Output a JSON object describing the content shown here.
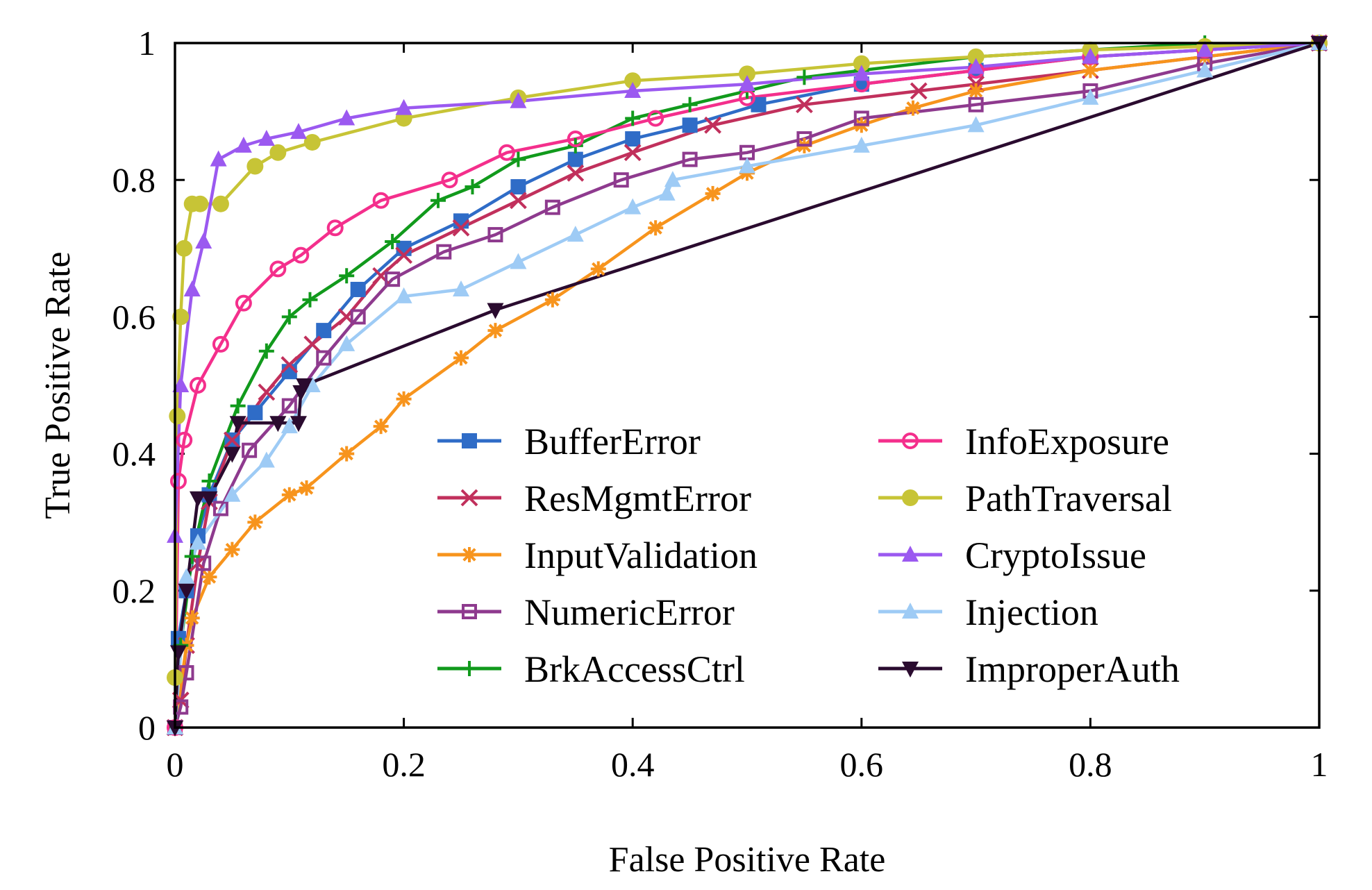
{
  "chart_data": {
    "type": "line",
    "title": "",
    "xlabel": "False Positive Rate",
    "ylabel": "True Positive Rate",
    "xlim": [
      0,
      1
    ],
    "ylim": [
      0,
      1
    ],
    "x_ticks": [
      "0",
      "0.2",
      "0.4",
      "0.6",
      "0.8",
      "1"
    ],
    "y_ticks": [
      "0",
      "0.2",
      "0.4",
      "0.6",
      "0.8",
      "1"
    ],
    "grid": false,
    "legend_position": "bottom-right",
    "series": [
      {
        "name": "BufferError",
        "color": "#2f6cc7",
        "marker": "square-filled",
        "x": [
          0,
          0.003,
          0.01,
          0.02,
          0.03,
          0.05,
          0.07,
          0.1,
          0.13,
          0.16,
          0.2,
          0.25,
          0.3,
          0.35,
          0.4,
          0.45,
          0.51,
          0.6,
          0.7,
          0.8,
          0.9,
          1
        ],
        "y": [
          0,
          0.13,
          0.2,
          0.28,
          0.34,
          0.42,
          0.46,
          0.52,
          0.58,
          0.64,
          0.7,
          0.74,
          0.79,
          0.83,
          0.86,
          0.88,
          0.91,
          0.94,
          0.96,
          0.98,
          0.99,
          1
        ]
      },
      {
        "name": "ResMgmtError",
        "color": "#c1305c",
        "marker": "x",
        "x": [
          0,
          0.005,
          0.01,
          0.02,
          0.03,
          0.05,
          0.08,
          0.1,
          0.12,
          0.15,
          0.18,
          0.2,
          0.25,
          0.3,
          0.35,
          0.4,
          0.47,
          0.55,
          0.65,
          0.7,
          0.8,
          0.9,
          1
        ],
        "y": [
          0,
          0.04,
          0.12,
          0.24,
          0.33,
          0.42,
          0.49,
          0.53,
          0.56,
          0.6,
          0.66,
          0.69,
          0.73,
          0.77,
          0.81,
          0.84,
          0.88,
          0.91,
          0.93,
          0.94,
          0.96,
          0.98,
          1
        ]
      },
      {
        "name": "InputValidation",
        "color": "#f7941d",
        "marker": "asterisk",
        "x": [
          0,
          0.01,
          0.015,
          0.03,
          0.05,
          0.07,
          0.1,
          0.115,
          0.15,
          0.18,
          0.2,
          0.25,
          0.28,
          0.33,
          0.37,
          0.42,
          0.47,
          0.5,
          0.55,
          0.6,
          0.645,
          0.7,
          0.8,
          0.9,
          1
        ],
        "y": [
          0,
          0.12,
          0.16,
          0.22,
          0.26,
          0.3,
          0.34,
          0.35,
          0.4,
          0.44,
          0.48,
          0.54,
          0.58,
          0.625,
          0.67,
          0.73,
          0.78,
          0.81,
          0.85,
          0.88,
          0.905,
          0.93,
          0.96,
          0.98,
          1
        ]
      },
      {
        "name": "NumericError",
        "color": "#8e3a8e",
        "marker": "square-open",
        "x": [
          0,
          0.005,
          0.01,
          0.025,
          0.04,
          0.065,
          0.1,
          0.13,
          0.16,
          0.19,
          0.235,
          0.28,
          0.33,
          0.39,
          0.45,
          0.5,
          0.55,
          0.6,
          0.7,
          0.8,
          0.9,
          1
        ],
        "y": [
          0,
          0.03,
          0.08,
          0.24,
          0.32,
          0.405,
          0.47,
          0.54,
          0.6,
          0.655,
          0.695,
          0.72,
          0.76,
          0.8,
          0.83,
          0.84,
          0.86,
          0.89,
          0.91,
          0.93,
          0.97,
          1
        ]
      },
      {
        "name": "BrkAccessCtrl",
        "color": "#119a1c",
        "marker": "plus",
        "x": [
          0,
          0.005,
          0.015,
          0.03,
          0.055,
          0.08,
          0.1,
          0.118,
          0.15,
          0.19,
          0.23,
          0.26,
          0.3,
          0.35,
          0.4,
          0.45,
          0.5,
          0.55,
          0.6,
          0.7,
          0.8,
          0.9,
          1
        ],
        "y": [
          0,
          0.12,
          0.25,
          0.36,
          0.47,
          0.55,
          0.6,
          0.625,
          0.66,
          0.71,
          0.77,
          0.79,
          0.83,
          0.85,
          0.89,
          0.91,
          0.93,
          0.95,
          0.96,
          0.98,
          0.99,
          1,
          1
        ]
      },
      {
        "name": "InfoExposure",
        "color": "#f42f8c",
        "marker": "circle-open",
        "x": [
          0,
          0.003,
          0.008,
          0.02,
          0.04,
          0.06,
          0.09,
          0.11,
          0.14,
          0.18,
          0.24,
          0.29,
          0.35,
          0.42,
          0.5,
          0.6,
          0.7,
          0.8,
          0.9,
          1
        ],
        "y": [
          0,
          0.36,
          0.42,
          0.5,
          0.56,
          0.62,
          0.67,
          0.69,
          0.73,
          0.77,
          0.8,
          0.84,
          0.86,
          0.89,
          0.92,
          0.94,
          0.96,
          0.98,
          0.99,
          1
        ]
      },
      {
        "name": "PathTraversal",
        "color": "#c7c436",
        "marker": "circle-filled",
        "x": [
          0,
          0.002,
          0.005,
          0.008,
          0.015,
          0.022,
          0.04,
          0.07,
          0.09,
          0.12,
          0.2,
          0.3,
          0.4,
          0.5,
          0.6,
          0.7,
          0.8,
          0.9,
          1
        ],
        "y": [
          0.073,
          0.455,
          0.6,
          0.7,
          0.765,
          0.765,
          0.765,
          0.82,
          0.84,
          0.855,
          0.89,
          0.92,
          0.945,
          0.955,
          0.97,
          0.98,
          0.99,
          0.995,
          1
        ]
      },
      {
        "name": "CryptoIssue",
        "color": "#9b59f0",
        "marker": "triangle-up",
        "x": [
          0,
          0.005,
          0.015,
          0.025,
          0.038,
          0.06,
          0.08,
          0.108,
          0.15,
          0.2,
          0.3,
          0.4,
          0.5,
          0.6,
          0.7,
          0.8,
          0.9,
          1
        ],
        "y": [
          0.28,
          0.5,
          0.64,
          0.71,
          0.83,
          0.85,
          0.86,
          0.87,
          0.89,
          0.905,
          0.915,
          0.93,
          0.94,
          0.955,
          0.965,
          0.98,
          0.99,
          1
        ]
      },
      {
        "name": "Injection",
        "color": "#9ecbf5",
        "marker": "triangle-up",
        "x": [
          0,
          0.01,
          0.02,
          0.05,
          0.08,
          0.1,
          0.12,
          0.15,
          0.2,
          0.25,
          0.3,
          0.35,
          0.4,
          0.43,
          0.435,
          0.5,
          0.6,
          0.7,
          0.8,
          0.9,
          1
        ],
        "y": [
          0,
          0.22,
          0.27,
          0.34,
          0.39,
          0.44,
          0.5,
          0.56,
          0.63,
          0.64,
          0.68,
          0.72,
          0.76,
          0.78,
          0.8,
          0.82,
          0.85,
          0.88,
          0.92,
          0.96,
          1
        ]
      },
      {
        "name": "ImproperAuth",
        "color": "#2a0b2f",
        "marker": "triangle-down",
        "x": [
          0,
          0.003,
          0.01,
          0.02,
          0.03,
          0.05,
          0.055,
          0.09,
          0.108,
          0.11,
          0.113,
          0.28,
          1
        ],
        "y": [
          0,
          0.11,
          0.2,
          0.335,
          0.335,
          0.4,
          0.445,
          0.445,
          0.445,
          0.49,
          0.5,
          0.61,
          1
        ]
      }
    ]
  }
}
